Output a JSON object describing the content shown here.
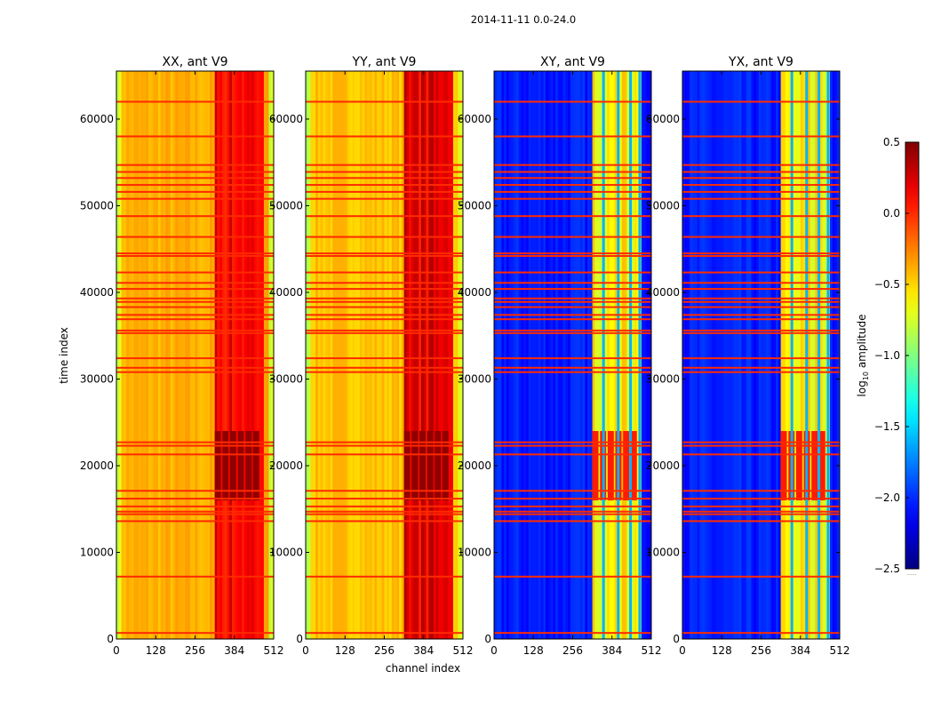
{
  "chart_data": {
    "type": "heatmap",
    "suptitle": "2014-11-11 0.0-24.0",
    "xlabel": "channel index",
    "ylabel": "time index",
    "xlim": [
      0,
      512
    ],
    "ylim": [
      0,
      65536
    ],
    "xticks": [
      0,
      128,
      256,
      384,
      512
    ],
    "yticks": [
      0,
      10000,
      20000,
      30000,
      40000,
      50000,
      60000
    ],
    "colorbar": {
      "label_main": "log",
      "label_sub": "10",
      "label_rest": " amplitude",
      "range": [
        -2.5,
        0.5
      ],
      "ticks": [
        "0.5",
        "0.0",
        "−0.5",
        "−1.0",
        "−1.5",
        "−2.0",
        "−2.5"
      ],
      "tick_values": [
        0.5,
        0.0,
        -0.5,
        -1.0,
        -1.5,
        -2.0,
        -2.5
      ],
      "colormap": "jet",
      "extra_label": "......"
    },
    "panels": [
      {
        "title": "XX, ant V9",
        "type": "auto",
        "background": -0.4,
        "signal_band": [
          320,
          480
        ],
        "signal_level": 0.15
      },
      {
        "title": "YY, ant V9",
        "type": "auto",
        "background": -0.45,
        "signal_band": [
          320,
          480
        ],
        "signal_level": 0.2
      },
      {
        "title": "XY, ant V9",
        "type": "cross",
        "background": -2.05,
        "signal_band": [
          320,
          480
        ],
        "signal_level": -0.6
      },
      {
        "title": "YX, ant V9",
        "type": "cross",
        "background": -2.05,
        "signal_band": [
          320,
          480
        ],
        "signal_level": -0.6
      }
    ],
    "hot_region": [
      16000,
      24000
    ],
    "flagged_rows": [
      700,
      7200,
      13600,
      14400,
      14700,
      15300,
      16200,
      17100,
      21300,
      22300,
      22700,
      30800,
      31300,
      32400,
      35300,
      35600,
      36900,
      37400,
      38300,
      38900,
      39300,
      40400,
      41100,
      42300,
      44200,
      44500,
      46400,
      48800,
      50800,
      51600,
      52400,
      53200,
      53900,
      54700,
      58000,
      62000
    ],
    "flag_value": 0.0
  }
}
